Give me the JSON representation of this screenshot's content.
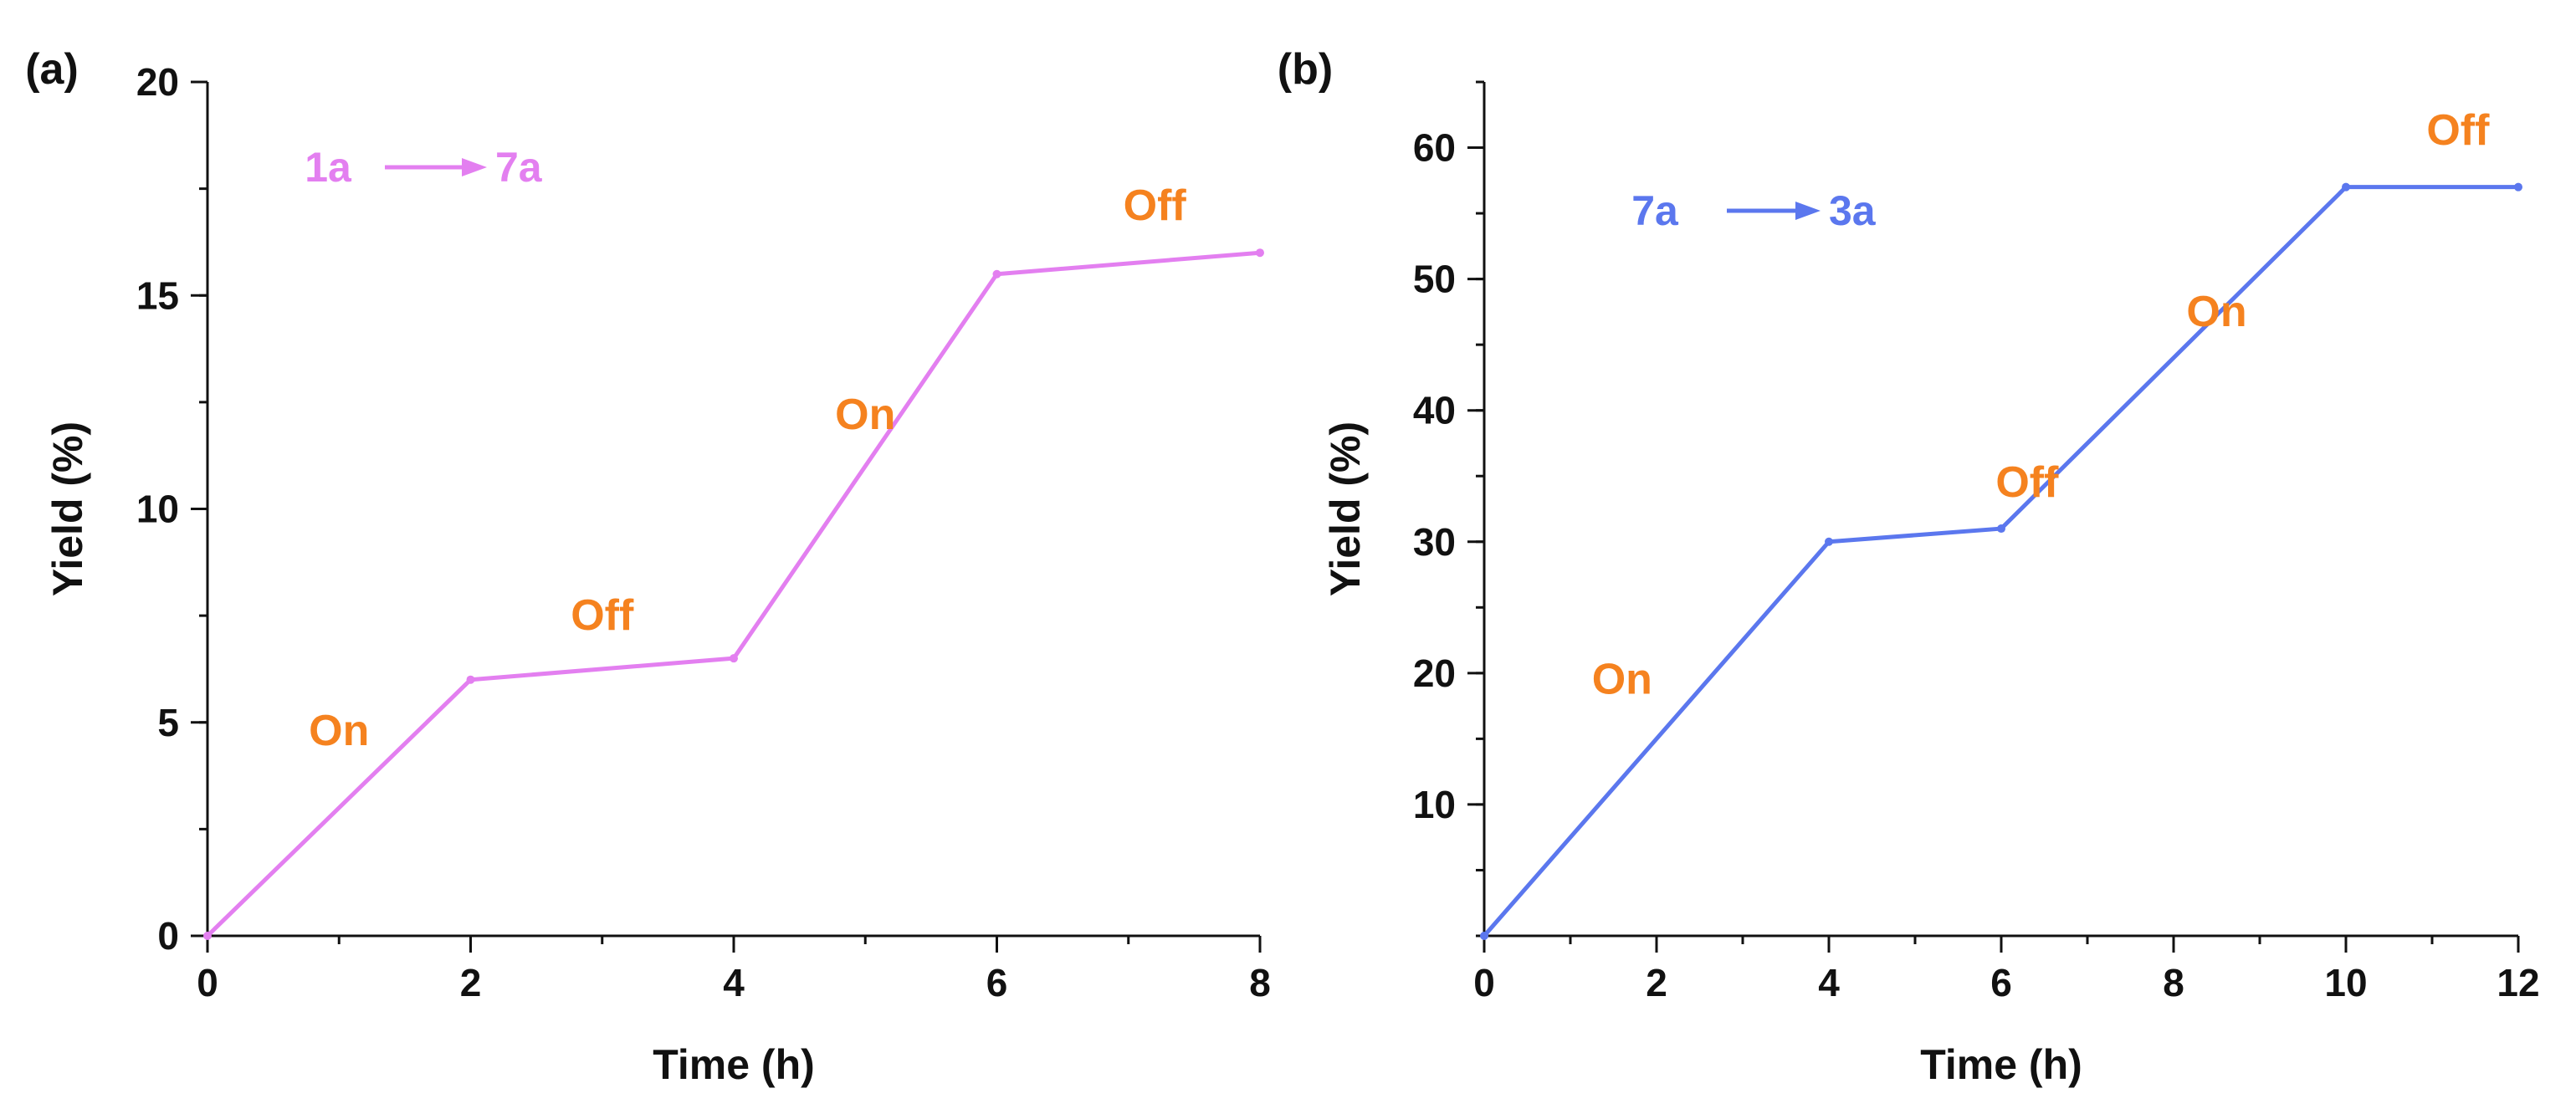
{
  "colors": {
    "axis": "#111111",
    "annotation": "#f5821f",
    "series_a": "#e37ff0",
    "series_b": "#5b77ee"
  },
  "chart_data": [
    {
      "type": "line",
      "panel_label": "(a)",
      "xlabel": "Time (h)",
      "ylabel": "Yield (%)",
      "xlim": [
        0,
        8
      ],
      "ylim": [
        0,
        20
      ],
      "x_ticks": [
        "0",
        "2",
        "4",
        "6",
        "8"
      ],
      "y_ticks": [
        "0",
        "5",
        "10",
        "15",
        "20"
      ],
      "series": [
        {
          "name": "1a to 7a",
          "x": [
            0,
            2,
            4,
            6,
            8
          ],
          "y": [
            0,
            6,
            6.5,
            15.5,
            16
          ]
        }
      ],
      "reaction": {
        "from": "1a",
        "to": "7a"
      },
      "annotations": [
        {
          "text": "On",
          "x": 1,
          "y": 4.8
        },
        {
          "text": "Off",
          "x": 3,
          "y": 7.5
        },
        {
          "text": "On",
          "x": 5,
          "y": 12.2
        },
        {
          "text": "Off",
          "x": 7.2,
          "y": 17.1
        }
      ]
    },
    {
      "type": "line",
      "panel_label": "(b)",
      "xlabel": "Time (h)",
      "ylabel": "Yield (%)",
      "xlim": [
        0,
        12
      ],
      "ylim": [
        0,
        65
      ],
      "x_ticks": [
        "0",
        "2",
        "4",
        "6",
        "8",
        "10",
        "12"
      ],
      "y_ticks": [
        "10",
        "20",
        "30",
        "40",
        "50",
        "60"
      ],
      "series": [
        {
          "name": "7a to 3a",
          "x": [
            0,
            4,
            6,
            10,
            12
          ],
          "y": [
            0,
            30,
            31,
            57,
            57
          ]
        }
      ],
      "reaction": {
        "from": "7a",
        "to": "3a"
      },
      "annotations": [
        {
          "text": "On",
          "x": 1.6,
          "y": 19.5
        },
        {
          "text": "Off",
          "x": 6.3,
          "y": 34.5
        },
        {
          "text": "On",
          "x": 8.5,
          "y": 47.5
        },
        {
          "text": "Off",
          "x": 11.3,
          "y": 61.3
        }
      ]
    }
  ]
}
